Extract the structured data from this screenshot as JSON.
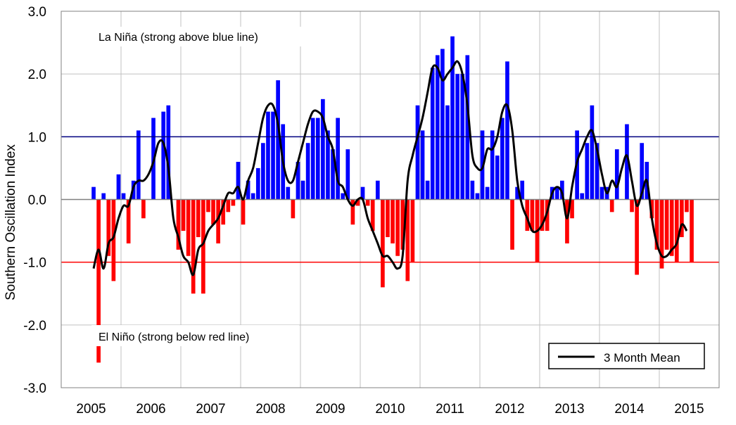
{
  "chart_data": {
    "type": "bar",
    "ylabel": "Southern Oscillation Index",
    "ylim": [
      -3.0,
      3.0
    ],
    "y_ticks": [
      "-3.0",
      "-2.0",
      "-1.0",
      "0.0",
      "1.0",
      "2.0",
      "3.0"
    ],
    "x_ticks": [
      "2005",
      "2006",
      "2007",
      "2008",
      "2009",
      "2010",
      "2011",
      "2012",
      "2013",
      "2014",
      "2015"
    ],
    "grid": true,
    "annotations": {
      "la_nina": "La Niña (strong above blue line)",
      "el_nino": "El Niño (strong below red line)"
    },
    "threshold_lines": [
      {
        "value": 1.0,
        "color": "#000080"
      },
      {
        "value": -1.0,
        "color": "#ff0000"
      }
    ],
    "colors": {
      "positive": "#0000ff",
      "negative": "#ff0000",
      "mean_line": "#000000"
    },
    "legend": {
      "position": "bottom-right",
      "label": "3 Month Mean"
    },
    "series": [
      {
        "type": "bar",
        "start": "2004-07",
        "values": [
          0.2,
          -2.6,
          0.1,
          -0.9,
          -1.3,
          0.4,
          0.1,
          -0.7,
          0.3,
          1.1,
          -0.3,
          0.0,
          1.3,
          0.0,
          1.4,
          1.5,
          0.0,
          -0.8,
          -0.5,
          -0.9,
          -1.5,
          -0.6,
          -1.5,
          -0.2,
          -0.4,
          -0.7,
          -0.4,
          -0.2,
          -0.1,
          0.6,
          -0.4,
          0.3,
          0.1,
          0.5,
          0.9,
          1.4,
          1.4,
          1.9,
          1.2,
          0.2,
          -0.3,
          0.6,
          0.3,
          0.9,
          1.3,
          1.3,
          1.6,
          1.1,
          0.8,
          1.3,
          0.1,
          0.8,
          -0.4,
          -0.1,
          0.2,
          -0.1,
          -0.5,
          0.3,
          -1.4,
          -0.6,
          -0.7,
          -0.9,
          -0.8,
          -1.3,
          -1.0,
          1.5,
          1.1,
          0.3,
          2.1,
          2.3,
          2.4,
          1.5,
          2.6,
          2.0,
          2.0,
          2.3,
          0.3,
          0.1,
          1.1,
          0.2,
          1.1,
          0.7,
          1.3,
          2.2,
          -0.8,
          0.2,
          0.3,
          -0.5,
          -0.5,
          -1.0,
          -0.5,
          -0.5,
          0.2,
          0.2,
          0.3,
          -0.7,
          -0.3,
          1.1,
          0.1,
          0.9,
          1.5,
          0.9,
          0.2,
          0.2,
          -0.2,
          0.8,
          0.0,
          1.2,
          -0.2,
          -1.2,
          0.9,
          0.6,
          -0.3,
          -0.8,
          -1.1,
          -0.8,
          -0.9,
          -1.0,
          -0.6,
          -0.2,
          -1.0
        ]
      },
      {
        "type": "line",
        "name": "3 Month Mean",
        "start": "2004-07",
        "values": [
          -1.1,
          -0.8,
          -1.1,
          -0.7,
          -0.6,
          -0.3,
          -0.1,
          -0.1,
          0.2,
          0.3,
          0.3,
          0.4,
          0.6,
          0.9,
          0.9,
          0.5,
          -0.3,
          -0.6,
          -0.9,
          -1.0,
          -1.2,
          -0.8,
          -0.7,
          -0.5,
          -0.4,
          -0.3,
          -0.1,
          0.1,
          0.1,
          0.2,
          0.0,
          0.3,
          0.5,
          0.9,
          1.3,
          1.5,
          1.5,
          1.2,
          0.6,
          0.3,
          0.3,
          0.6,
          0.9,
          1.2,
          1.4,
          1.4,
          1.3,
          1.0,
          0.8,
          0.3,
          0.2,
          0.0,
          -0.1,
          0.0,
          0.0,
          -0.3,
          -0.5,
          -0.7,
          -0.9,
          -0.9,
          -1.0,
          -1.1,
          -0.9,
          0.3,
          0.7,
          1.0,
          1.3,
          1.7,
          2.1,
          2.1,
          1.9,
          2.0,
          2.1,
          2.2,
          2.0,
          1.5,
          0.7,
          0.5,
          0.5,
          0.8,
          0.8,
          1.0,
          1.4,
          1.5,
          1.1,
          0.3,
          -0.1,
          -0.3,
          -0.5,
          -0.5,
          -0.4,
          -0.2,
          0.1,
          0.2,
          0.1,
          -0.3,
          0.2,
          0.6,
          0.8,
          1.0,
          1.1,
          0.8,
          0.4,
          0.1,
          0.3,
          0.2,
          0.5,
          0.7,
          0.3,
          -0.1,
          0.1,
          0.3,
          -0.3,
          -0.7,
          -0.9,
          -0.9,
          -0.8,
          -0.7,
          -0.4,
          -0.5
        ]
      }
    ]
  }
}
